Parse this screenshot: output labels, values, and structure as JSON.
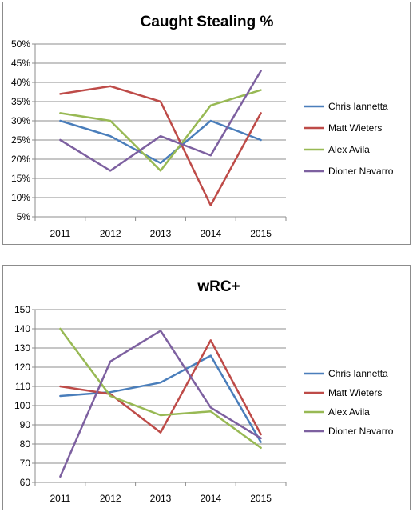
{
  "chart_data": [
    {
      "type": "line",
      "title": "Caught Stealing %",
      "xlabel": "",
      "ylabel": "",
      "categories": [
        "2011",
        "2012",
        "2013",
        "2014",
        "2015"
      ],
      "y_ticks": [
        "5%",
        "10%",
        "15%",
        "20%",
        "25%",
        "30%",
        "35%",
        "40%",
        "45%",
        "50%"
      ],
      "ylim": [
        5,
        50
      ],
      "grid": true,
      "legend_position": "right",
      "series": [
        {
          "name": "Chris Iannetta",
          "color": "#4a7ebb",
          "values": [
            30,
            26,
            19,
            30,
            25
          ]
        },
        {
          "name": "Matt Wieters",
          "color": "#be4b48",
          "values": [
            37,
            39,
            35,
            8,
            32
          ]
        },
        {
          "name": "Alex Avila",
          "color": "#98b954",
          "values": [
            32,
            30,
            17,
            34,
            38
          ]
        },
        {
          "name": "Dioner Navarro",
          "color": "#7d60a0",
          "values": [
            25,
            17,
            26,
            21,
            43
          ]
        }
      ]
    },
    {
      "type": "line",
      "title": "wRC+",
      "xlabel": "",
      "ylabel": "",
      "categories": [
        "2011",
        "2012",
        "2013",
        "2014",
        "2015"
      ],
      "y_ticks": [
        "60",
        "70",
        "80",
        "90",
        "100",
        "110",
        "120",
        "130",
        "140",
        "150"
      ],
      "ylim": [
        60,
        150
      ],
      "grid": true,
      "legend_position": "right",
      "series": [
        {
          "name": "Chris Iannetta",
          "color": "#4a7ebb",
          "values": [
            105,
            107,
            112,
            126,
            81
          ]
        },
        {
          "name": "Matt Wieters",
          "color": "#be4b48",
          "values": [
            110,
            106,
            86,
            134,
            85
          ]
        },
        {
          "name": "Alex Avila",
          "color": "#98b954",
          "values": [
            140,
            105,
            95,
            97,
            78
          ]
        },
        {
          "name": "Dioner Navarro",
          "color": "#7d60a0",
          "values": [
            63,
            123,
            139,
            99,
            83
          ]
        }
      ]
    }
  ]
}
